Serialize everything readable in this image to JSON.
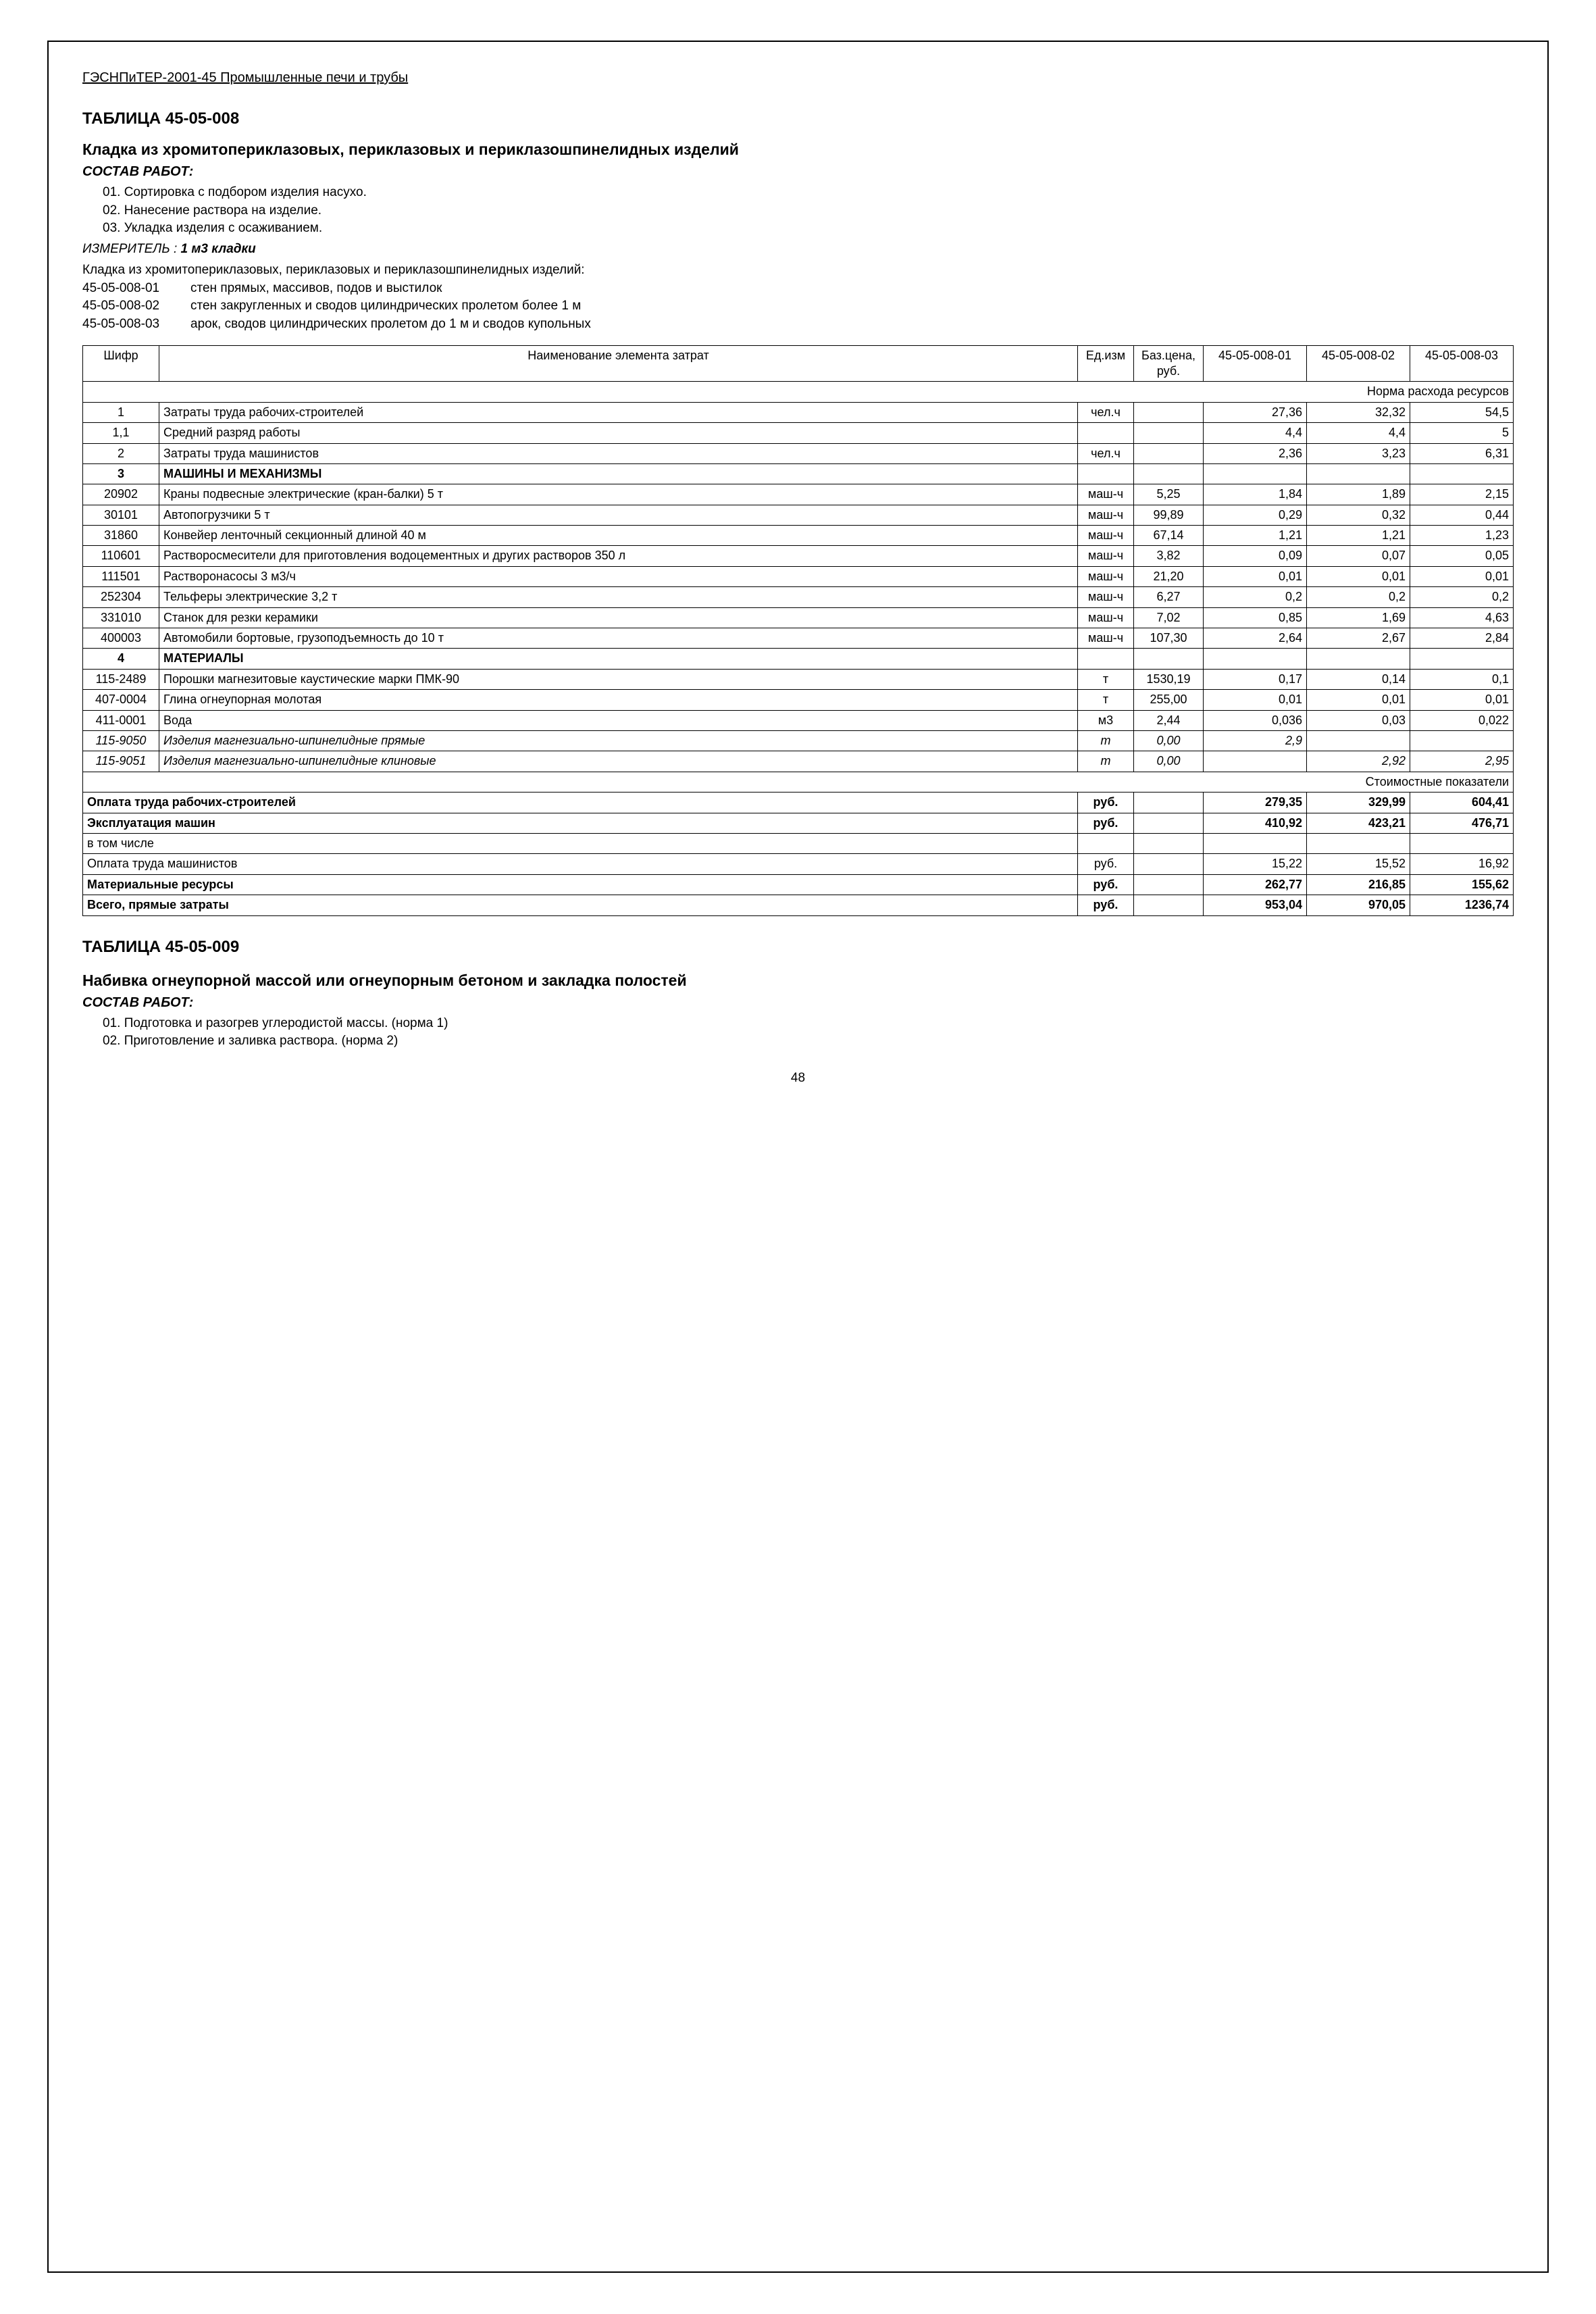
{
  "header": "ГЭСНПиТЕР-2001-45 Промышленные печи и трубы",
  "page_number": "48",
  "t008": {
    "title": "ТАБЛИЦА 45-05-008",
    "subtitle": "Кладка из хромитопериклазовых, периклазовых и периклазошпинелидных изделий",
    "sostav_label": "СОСТАВ РАБОТ:",
    "works": [
      "01. Сортировка с подбором изделия насухо.",
      "02. Нанесение раствора на изделие.",
      "03. Укладка изделия с осаживанием."
    ],
    "izmer_label": "ИЗМЕРИТЕЛЬ :",
    "izmer_value": "1 м3 кладки",
    "desc": "Кладка из хромитопериклазовых, периклазовых и периклазошпинелидных изделий:",
    "codes": [
      {
        "code": "45-05-008-01",
        "text": "стен прямых, массивов, подов и выстилок"
      },
      {
        "code": "45-05-008-02",
        "text": "стен закругленных и сводов цилиндрических пролетом более 1 м"
      },
      {
        "code": "45-05-008-03",
        "text": "арок, сводов цилиндрических пролетом до 1 м и сводов купольных"
      }
    ],
    "columns": {
      "shifr": "Шифр",
      "name": "Наименование элемента затрат",
      "ed": "Ед.изм",
      "baz": "Баз.цена, руб.",
      "c1": "45-05-008-01",
      "c2": "45-05-008-02",
      "c3": "45-05-008-03"
    },
    "banner_norm": "Норма расхода ресурсов",
    "banner_stoim": "Стоимостные показатели",
    "rows": [
      {
        "shifr": "1",
        "name": "Затраты труда рабочих-строителей",
        "ed": "чел.ч",
        "baz": "",
        "v": [
          "27,36",
          "32,32",
          "54,5"
        ]
      },
      {
        "shifr": "1,1",
        "name": "Средний разряд работы",
        "ed": "",
        "baz": "",
        "v": [
          "4,4",
          "4,4",
          "5"
        ]
      },
      {
        "shifr": "2",
        "name": "Затраты труда машинистов",
        "ed": "чел.ч",
        "baz": "",
        "v": [
          "2,36",
          "3,23",
          "6,31"
        ]
      }
    ],
    "sec3": {
      "shifr": "3",
      "name": "МАШИНЫ И МЕХАНИЗМЫ"
    },
    "rows3": [
      {
        "shifr": "20902",
        "name": "Краны подвесные электрические (кран-балки) 5 т",
        "ed": "маш-ч",
        "baz": "5,25",
        "v": [
          "1,84",
          "1,89",
          "2,15"
        ]
      },
      {
        "shifr": "30101",
        "name": "Автопогрузчики 5 т",
        "ed": "маш-ч",
        "baz": "99,89",
        "v": [
          "0,29",
          "0,32",
          "0,44"
        ]
      },
      {
        "shifr": "31860",
        "name": "Конвейер ленточный секционный длиной 40 м",
        "ed": "маш-ч",
        "baz": "67,14",
        "v": [
          "1,21",
          "1,21",
          "1,23"
        ]
      },
      {
        "shifr": "110601",
        "name": "Растворосмесители для приготовления водоцементных и других растворов 350 л",
        "ed": "маш-ч",
        "baz": "3,82",
        "v": [
          "0,09",
          "0,07",
          "0,05"
        ]
      },
      {
        "shifr": "111501",
        "name": "Растворонасосы 3 м3/ч",
        "ed": "маш-ч",
        "baz": "21,20",
        "v": [
          "0,01",
          "0,01",
          "0,01"
        ]
      },
      {
        "shifr": "252304",
        "name": "Тельферы электрические 3,2 т",
        "ed": "маш-ч",
        "baz": "6,27",
        "v": [
          "0,2",
          "0,2",
          "0,2"
        ]
      },
      {
        "shifr": "331010",
        "name": "Станок для резки керамики",
        "ed": "маш-ч",
        "baz": "7,02",
        "v": [
          "0,85",
          "1,69",
          "4,63"
        ]
      },
      {
        "shifr": "400003",
        "name": "Автомобили бортовые, грузоподъемность до 10 т",
        "ed": "маш-ч",
        "baz": "107,30",
        "v": [
          "2,64",
          "2,67",
          "2,84"
        ]
      }
    ],
    "sec4": {
      "shifr": "4",
      "name": "МАТЕРИАЛЫ"
    },
    "rows4": [
      {
        "shifr": "115-2489",
        "name": "Порошки магнезитовые каустические марки ПМК-90",
        "ed": "т",
        "baz": "1530,19",
        "v": [
          "0,17",
          "0,14",
          "0,1"
        ]
      },
      {
        "shifr": "407-0004",
        "name": "Глина огнеупорная молотая",
        "ed": "т",
        "baz": "255,00",
        "v": [
          "0,01",
          "0,01",
          "0,01"
        ]
      },
      {
        "shifr": "411-0001",
        "name": "Вода",
        "ed": "м3",
        "baz": "2,44",
        "v": [
          "0,036",
          "0,03",
          "0,022"
        ]
      },
      {
        "shifr": "115-9050",
        "name": "Изделия магнезиально-шпинелидные прямые",
        "ed": "т",
        "baz": "0,00",
        "v": [
          "2,9",
          "",
          ""
        ],
        "italic": true
      },
      {
        "shifr": "115-9051",
        "name": "Изделия магнезиально-шпинелидные клиновые",
        "ed": "т",
        "baz": "0,00",
        "v": [
          "",
          "2,92",
          "2,95"
        ],
        "italic": true
      }
    ],
    "summary": [
      {
        "name": "Оплата труда рабочих-строителей",
        "ed": "руб.",
        "v": [
          "279,35",
          "329,99",
          "604,41"
        ],
        "bold": true
      },
      {
        "name": "Эксплуатация машин",
        "ed": "руб.",
        "v": [
          "410,92",
          "423,21",
          "476,71"
        ],
        "bold": true
      },
      {
        "name": "в том числе",
        "ed": "",
        "v": [
          "",
          "",
          ""
        ],
        "bold": false
      },
      {
        "name": "Оплата труда машинистов",
        "ed": "руб.",
        "v": [
          "15,22",
          "15,52",
          "16,92"
        ],
        "bold": false
      },
      {
        "name": "Материальные ресурсы",
        "ed": "руб.",
        "v": [
          "262,77",
          "216,85",
          "155,62"
        ],
        "bold": true
      },
      {
        "name": "Всего, прямые затраты",
        "ed": "руб.",
        "v": [
          "953,04",
          "970,05",
          "1236,74"
        ],
        "bold": true
      }
    ]
  },
  "t009": {
    "title": "ТАБЛИЦА 45-05-009",
    "subtitle": "Набивка огнеупорной массой или огнеупорным бетоном и закладка полостей",
    "sostav_label": "СОСТАВ РАБОТ:",
    "works": [
      "01. Подготовка и разогрев углеродистой массы. (норма 1)",
      "02. Приготовление и заливка раствора. (норма 2)"
    ]
  }
}
